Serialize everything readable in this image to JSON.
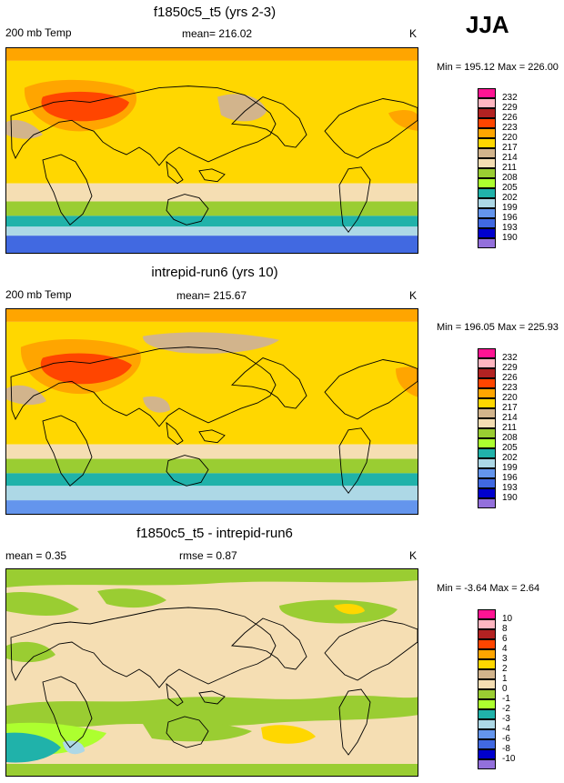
{
  "season": "JJA",
  "panels": [
    {
      "title": "f1850c5_t5 (yrs 2-3)",
      "left_label": "200 mb Temp",
      "center_label": "mean= 216.02",
      "units": "K",
      "minmax": "Min = 195.12 Max = 226.00",
      "levels": [
        "232",
        "229",
        "226",
        "223",
        "220",
        "217",
        "214",
        "211",
        "208",
        "205",
        "202",
        "199",
        "196",
        "193",
        "190"
      ],
      "colors": [
        "#ff1493",
        "#ffb6c1",
        "#b22222",
        "#ff4500",
        "#ffa500",
        "#ffd700",
        "#d2b48c",
        "#f5deb3",
        "#9acd32",
        "#adff2f",
        "#20b2aa",
        "#add8e6",
        "#6495ed",
        "#4169e1",
        "#0000cd",
        "#9370db"
      ],
      "field": "temp1"
    },
    {
      "title": "intrepid-run6 (yrs 10)",
      "left_label": "200 mb Temp",
      "center_label": "mean= 215.67",
      "units": "K",
      "minmax": "Min = 196.05 Max = 225.93",
      "levels": [
        "232",
        "229",
        "226",
        "223",
        "220",
        "217",
        "214",
        "211",
        "208",
        "205",
        "202",
        "199",
        "196",
        "193",
        "190"
      ],
      "colors": [
        "#ff1493",
        "#ffb6c1",
        "#b22222",
        "#ff4500",
        "#ffa500",
        "#ffd700",
        "#d2b48c",
        "#f5deb3",
        "#9acd32",
        "#adff2f",
        "#20b2aa",
        "#add8e6",
        "#6495ed",
        "#4169e1",
        "#0000cd",
        "#9370db"
      ],
      "field": "temp2"
    },
    {
      "title": "f1850c5_t5 - intrepid-run6",
      "left_label": "mean =   0.35",
      "center_label": "rmse =   0.87",
      "units": "K",
      "minmax": "Min =  -3.64 Max =   2.64",
      "levels": [
        "10",
        "8",
        "6",
        "4",
        "3",
        "2",
        "1",
        "0",
        "-1",
        "-2",
        "-3",
        "-4",
        "-6",
        "-8",
        "-10"
      ],
      "colors": [
        "#ff1493",
        "#ffb6c1",
        "#b22222",
        "#ff4500",
        "#ffa500",
        "#ffd700",
        "#d2b48c",
        "#f5deb3",
        "#9acd32",
        "#adff2f",
        "#20b2aa",
        "#add8e6",
        "#6495ed",
        "#4169e1",
        "#0000cd",
        "#9370db"
      ],
      "field": "diff"
    }
  ],
  "chart_data": [
    {
      "type": "heatmap",
      "title": "f1850c5_t5 (yrs 2-3)",
      "variable": "200 mb Temp",
      "units": "K",
      "mean": 216.02,
      "min": 195.12,
      "max": 226.0,
      "contour_levels": [
        190,
        193,
        196,
        199,
        202,
        205,
        208,
        211,
        214,
        217,
        220,
        223,
        226,
        229,
        232
      ]
    },
    {
      "type": "heatmap",
      "title": "intrepid-run6 (yrs 10)",
      "variable": "200 mb Temp",
      "units": "K",
      "mean": 215.67,
      "min": 196.05,
      "max": 225.93,
      "contour_levels": [
        190,
        193,
        196,
        199,
        202,
        205,
        208,
        211,
        214,
        217,
        220,
        223,
        226,
        229,
        232
      ]
    },
    {
      "type": "heatmap",
      "title": "f1850c5_t5 - intrepid-run6",
      "units": "K",
      "mean": 0.35,
      "rmse": 0.87,
      "min": -3.64,
      "max": 2.64,
      "contour_levels": [
        -10,
        -8,
        -6,
        -4,
        -3,
        -2,
        -1,
        0,
        1,
        2,
        3,
        4,
        6,
        8,
        10
      ]
    }
  ]
}
